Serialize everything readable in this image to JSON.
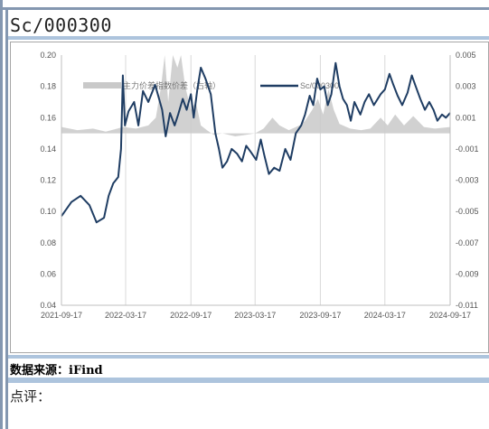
{
  "page": {
    "title": "Sc/000300",
    "source_label": "数据来源：iFind",
    "comment_label": "点评："
  },
  "chart_data": {
    "type": "line",
    "legend": {
      "placement": "top",
      "entries": [
        "主力价差指数价差（右轴）",
        "Sc/000300"
      ]
    },
    "x_ticks": [
      "2021-09-17",
      "2022-03-17",
      "2022-09-17",
      "2023-03-17",
      "2023-09-17",
      "2024-03-17",
      "2024-09-17"
    ],
    "xlim": [
      "2021-09-17",
      "2024-09-17"
    ],
    "y_left": {
      "ticks": [
        0.04,
        0.06,
        0.08,
        0.1,
        0.12,
        0.14,
        0.16,
        0.18,
        0.2
      ],
      "ylim": [
        0.04,
        0.2
      ]
    },
    "y_right": {
      "ticks": [
        -0.011,
        -0.009,
        -0.007,
        -0.005,
        -0.003,
        -0.001,
        0.001,
        0.003,
        0.005
      ],
      "ylim": [
        -0.011,
        0.005
      ]
    },
    "grid": "vertical",
    "colors": {
      "line": "#1f3d63",
      "area": "#c9c9c9"
    },
    "series": [
      {
        "name": "Sc/000300",
        "kind": "line",
        "axis": "left",
        "points": [
          [
            "2021-09-17",
            0.097
          ],
          [
            "2021-10-15",
            0.106
          ],
          [
            "2021-11-10",
            0.11
          ],
          [
            "2021-12-05",
            0.104
          ],
          [
            "2021-12-25",
            0.093
          ],
          [
            "2022-01-15",
            0.096
          ],
          [
            "2022-01-28",
            0.11
          ],
          [
            "2022-02-10",
            0.118
          ],
          [
            "2022-02-24",
            0.122
          ],
          [
            "2022-03-04",
            0.14
          ],
          [
            "2022-03-09",
            0.187
          ],
          [
            "2022-03-15",
            0.155
          ],
          [
            "2022-03-25",
            0.164
          ],
          [
            "2022-04-10",
            0.17
          ],
          [
            "2022-04-22",
            0.155
          ],
          [
            "2022-05-05",
            0.177
          ],
          [
            "2022-05-20",
            0.17
          ],
          [
            "2022-06-08",
            0.181
          ],
          [
            "2022-06-18",
            0.173
          ],
          [
            "2022-06-28",
            0.165
          ],
          [
            "2022-07-08",
            0.148
          ],
          [
            "2022-07-20",
            0.163
          ],
          [
            "2022-08-02",
            0.155
          ],
          [
            "2022-08-12",
            0.162
          ],
          [
            "2022-08-25",
            0.172
          ],
          [
            "2022-09-05",
            0.165
          ],
          [
            "2022-09-17",
            0.175
          ],
          [
            "2022-09-25",
            0.16
          ],
          [
            "2022-10-05",
            0.178
          ],
          [
            "2022-10-15",
            0.192
          ],
          [
            "2022-10-28",
            0.185
          ],
          [
            "2022-11-12",
            0.175
          ],
          [
            "2022-11-25",
            0.15
          ],
          [
            "2022-12-05",
            0.14
          ],
          [
            "2022-12-15",
            0.128
          ],
          [
            "2022-12-28",
            0.132
          ],
          [
            "2023-01-10",
            0.14
          ],
          [
            "2023-01-25",
            0.137
          ],
          [
            "2023-02-08",
            0.132
          ],
          [
            "2023-02-20",
            0.142
          ],
          [
            "2023-03-05",
            0.138
          ],
          [
            "2023-03-20",
            0.133
          ],
          [
            "2023-04-02",
            0.146
          ],
          [
            "2023-04-12",
            0.136
          ],
          [
            "2023-04-25",
            0.124
          ],
          [
            "2023-05-10",
            0.128
          ],
          [
            "2023-05-25",
            0.126
          ],
          [
            "2023-06-10",
            0.14
          ],
          [
            "2023-06-25",
            0.133
          ],
          [
            "2023-07-10",
            0.15
          ],
          [
            "2023-07-25",
            0.155
          ],
          [
            "2023-08-05",
            0.162
          ],
          [
            "2023-08-18",
            0.174
          ],
          [
            "2023-08-28",
            0.168
          ],
          [
            "2023-09-08",
            0.185
          ],
          [
            "2023-09-17",
            0.178
          ],
          [
            "2023-09-28",
            0.18
          ],
          [
            "2023-10-08",
            0.168
          ],
          [
            "2023-10-18",
            0.175
          ],
          [
            "2023-10-30",
            0.195
          ],
          [
            "2023-11-10",
            0.18
          ],
          [
            "2023-11-20",
            0.172
          ],
          [
            "2023-12-01",
            0.168
          ],
          [
            "2023-12-12",
            0.158
          ],
          [
            "2023-12-22",
            0.17
          ],
          [
            "2024-01-08",
            0.162
          ],
          [
            "2024-01-20",
            0.17
          ],
          [
            "2024-02-01",
            0.175
          ],
          [
            "2024-02-15",
            0.168
          ],
          [
            "2024-03-05",
            0.175
          ],
          [
            "2024-03-17",
            0.178
          ],
          [
            "2024-03-30",
            0.188
          ],
          [
            "2024-04-10",
            0.181
          ],
          [
            "2024-04-22",
            0.174
          ],
          [
            "2024-05-05",
            0.168
          ],
          [
            "2024-05-20",
            0.176
          ],
          [
            "2024-06-01",
            0.187
          ],
          [
            "2024-06-12",
            0.18
          ],
          [
            "2024-06-25",
            0.172
          ],
          [
            "2024-07-08",
            0.165
          ],
          [
            "2024-07-20",
            0.17
          ],
          [
            "2024-08-01",
            0.165
          ],
          [
            "2024-08-12",
            0.158
          ],
          [
            "2024-08-25",
            0.162
          ],
          [
            "2024-09-05",
            0.16
          ],
          [
            "2024-09-17",
            0.163
          ]
        ]
      },
      {
        "name": "主力价差指数价差（右轴）",
        "kind": "area",
        "axis": "right",
        "points": [
          [
            "2021-09-17",
            0.0004
          ],
          [
            "2021-11-01",
            0.0002
          ],
          [
            "2021-12-15",
            0.0003
          ],
          [
            "2022-01-20",
            0.0001
          ],
          [
            "2022-03-10",
            0.0004
          ],
          [
            "2022-04-15",
            0.0003
          ],
          [
            "2022-05-20",
            0.0005
          ],
          [
            "2022-06-10",
            0.001
          ],
          [
            "2022-06-25",
            0.003
          ],
          [
            "2022-07-05",
            0.005
          ],
          [
            "2022-07-15",
            0.002
          ],
          [
            "2022-07-28",
            0.005
          ],
          [
            "2022-08-10",
            0.0042
          ],
          [
            "2022-08-20",
            0.005
          ],
          [
            "2022-09-01",
            0.003
          ],
          [
            "2022-09-17",
            0.0015
          ],
          [
            "2022-10-01",
            0.002
          ],
          [
            "2022-10-15",
            0.0005
          ],
          [
            "2022-11-01",
            0.0002
          ],
          [
            "2022-11-20",
            -0.0001
          ],
          [
            "2022-12-15",
            0.0
          ],
          [
            "2023-01-20",
            -0.0002
          ],
          [
            "2023-02-20",
            -0.0001
          ],
          [
            "2023-03-17",
            0.0
          ],
          [
            "2023-04-10",
            0.0003
          ],
          [
            "2023-05-05",
            0.001
          ],
          [
            "2023-05-25",
            0.0005
          ],
          [
            "2023-06-20",
            0.0002
          ],
          [
            "2023-07-20",
            0.0005
          ],
          [
            "2023-08-05",
            0.0008
          ],
          [
            "2023-08-25",
            0.0015
          ],
          [
            "2023-09-10",
            0.0022
          ],
          [
            "2023-09-25",
            0.0012
          ],
          [
            "2023-10-10",
            0.0028
          ],
          [
            "2023-10-25",
            0.0015
          ],
          [
            "2023-11-10",
            0.0006
          ],
          [
            "2023-12-10",
            0.0003
          ],
          [
            "2024-01-10",
            0.0002
          ],
          [
            "2024-02-05",
            0.0003
          ],
          [
            "2024-03-05",
            0.001
          ],
          [
            "2024-03-25",
            0.0005
          ],
          [
            "2024-04-15",
            0.0012
          ],
          [
            "2024-05-10",
            0.0005
          ],
          [
            "2024-06-05",
            0.0011
          ],
          [
            "2024-07-05",
            0.0004
          ],
          [
            "2024-08-05",
            0.0003
          ],
          [
            "2024-09-17",
            0.0004
          ]
        ]
      }
    ]
  }
}
